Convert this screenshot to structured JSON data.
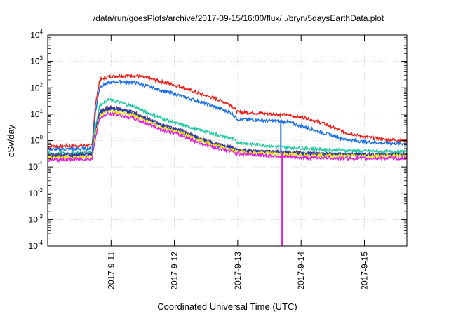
{
  "chart_data": {
    "type": "line",
    "title": "/data/run/goesPlots/archive/2017-09-15/16:00/flux/../bryn/5daysEarthData.plot",
    "xlabel": "Coordinated Universal Time (UTC)",
    "ylabel": "cSv/day",
    "y_scale": "log",
    "ylim": [
      0.0001,
      10000
    ],
    "xlim": [
      0,
      5.67
    ],
    "grid": true,
    "legend": "none",
    "y_ticks": [
      {
        "value": 0.0001,
        "base": "10",
        "exp": "-4"
      },
      {
        "value": 0.001,
        "base": "10",
        "exp": "-3"
      },
      {
        "value": 0.01,
        "base": "10",
        "exp": "-2"
      },
      {
        "value": 0.1,
        "base": "10",
        "exp": "-1"
      },
      {
        "value": 1,
        "base": "10",
        "exp": "0"
      },
      {
        "value": 10,
        "base": "10",
        "exp": "1"
      },
      {
        "value": 100,
        "base": "10",
        "exp": "2"
      },
      {
        "value": 1000,
        "base": "10",
        "exp": "3"
      },
      {
        "value": 10000,
        "base": "10",
        "exp": "4"
      }
    ],
    "x_ticks": [
      {
        "value": 1,
        "label": "2017-9-11"
      },
      {
        "value": 2,
        "label": "2017-9-12"
      },
      {
        "value": 3,
        "label": "2017-9-13"
      },
      {
        "value": 4,
        "label": "2017-9-14"
      },
      {
        "value": 5,
        "label": "2017-9-15"
      }
    ],
    "series": [
      {
        "color": "#e8201a",
        "x": [
          0,
          0.3,
          0.7,
          0.75,
          0.82,
          0.95,
          1.1,
          1.35,
          1.55,
          1.8,
          2.1,
          2.4,
          2.7,
          2.9,
          3.0,
          3.3,
          3.6,
          3.8,
          4.1,
          4.4,
          4.7,
          5.0,
          5.3,
          5.67
        ],
        "y": [
          0.6,
          0.62,
          0.65,
          20,
          200,
          260,
          280,
          290,
          240,
          170,
          110,
          60,
          35,
          22,
          12,
          11,
          10,
          9,
          7,
          4,
          2,
          1.4,
          1.1,
          1.0
        ]
      },
      {
        "color": "#1c6fe3",
        "x": [
          0,
          0.3,
          0.7,
          0.75,
          0.82,
          0.95,
          1.1,
          1.35,
          1.55,
          1.8,
          2.1,
          2.4,
          2.7,
          2.9,
          3.0,
          3.3,
          3.6,
          3.8,
          4.1,
          4.4,
          4.7,
          5.0,
          5.3,
          5.67
        ],
        "y": [
          0.45,
          0.47,
          0.5,
          10,
          110,
          150,
          170,
          160,
          120,
          80,
          50,
          30,
          17,
          11,
          6.5,
          6,
          5.5,
          5,
          3,
          1.8,
          1.1,
          0.9,
          0.8,
          0.75
        ]
      },
      {
        "color": "#20c8a0",
        "x": [
          0,
          0.3,
          0.7,
          0.75,
          0.82,
          0.95,
          1.1,
          1.35,
          1.55,
          1.8,
          2.1,
          2.4,
          2.7,
          2.9,
          3.0,
          3.3,
          3.6,
          3.8,
          4.1,
          4.4,
          4.7,
          5.0,
          5.3,
          5.67
        ],
        "y": [
          0.32,
          0.33,
          0.35,
          3,
          22,
          35,
          30,
          20,
          12,
          7,
          4,
          2.5,
          1.6,
          1.2,
          0.85,
          0.7,
          0.6,
          0.55,
          0.5,
          0.45,
          0.42,
          0.4,
          0.38,
          0.38
        ]
      },
      {
        "color": "#5a3a7a",
        "x": [
          0,
          0.3,
          0.7,
          0.75,
          0.82,
          0.95,
          1.1,
          1.35,
          1.55,
          1.8,
          2.1,
          2.4,
          2.7,
          2.9,
          3.0,
          3.3,
          3.6,
          3.8,
          4.1,
          4.4,
          4.7,
          5.0,
          5.3,
          5.67
        ],
        "y": [
          0.28,
          0.29,
          0.3,
          2,
          12,
          18,
          17,
          12,
          7,
          4,
          2.5,
          1.2,
          0.7,
          0.55,
          0.45,
          0.4,
          0.38,
          0.36,
          0.34,
          0.32,
          0.3,
          0.3,
          0.3,
          0.3
        ]
      },
      {
        "color": "#1a3ab0",
        "x": [
          0,
          0.3,
          0.7,
          0.75,
          0.82,
          0.95,
          1.1,
          1.35,
          1.55,
          1.8,
          2.1,
          2.4,
          2.7,
          2.9,
          3.0,
          3.3,
          3.6,
          3.8,
          4.1,
          4.4,
          4.7,
          5.0,
          5.3,
          5.67
        ],
        "y": [
          0.25,
          0.26,
          0.27,
          1.8,
          11,
          16,
          15,
          11,
          6.5,
          3.7,
          2.3,
          1.1,
          0.65,
          0.5,
          0.42,
          0.38,
          0.35,
          0.33,
          0.31,
          0.3,
          0.28,
          0.28,
          0.28,
          0.28
        ]
      },
      {
        "color": "#f5e21a",
        "x": [
          0,
          0.3,
          0.7,
          0.75,
          0.82,
          0.95,
          1.1,
          1.35,
          1.55,
          1.8,
          2.1,
          2.4,
          2.7,
          2.9,
          3.0,
          3.3,
          3.6,
          3.8,
          4.1,
          4.4,
          4.7,
          5.0,
          5.3,
          5.67
        ],
        "y": [
          0.22,
          0.23,
          0.24,
          1.5,
          9,
          13,
          12,
          9,
          5.5,
          3.2,
          2.0,
          1.0,
          0.6,
          0.45,
          0.38,
          0.34,
          0.32,
          0.3,
          0.28,
          0.27,
          0.26,
          0.26,
          0.26,
          0.26
        ]
      },
      {
        "color": "#e020d8",
        "x": [
          0,
          0.3,
          0.7,
          0.75,
          0.82,
          0.95,
          1.1,
          1.35,
          1.55,
          1.8,
          2.1,
          2.4,
          2.7,
          2.9,
          3.0,
          3.3,
          3.6,
          3.8,
          4.1,
          4.4,
          4.7,
          5.0,
          5.3,
          5.67
        ],
        "y": [
          0.18,
          0.19,
          0.2,
          1.2,
          7,
          10,
          9.5,
          7,
          4.5,
          2.6,
          1.6,
          0.8,
          0.5,
          0.38,
          0.32,
          0.28,
          0.26,
          0.24,
          0.22,
          0.22,
          0.21,
          0.21,
          0.21,
          0.21
        ]
      }
    ],
    "spikes": [
      {
        "color": "#1c6fe3",
        "x": 3.68,
        "y_top": 6,
        "y_bottom": 0.35
      },
      {
        "color": "#e020d8",
        "x": 3.7,
        "y_top": 0.32,
        "y_bottom": 0.0001
      }
    ]
  }
}
